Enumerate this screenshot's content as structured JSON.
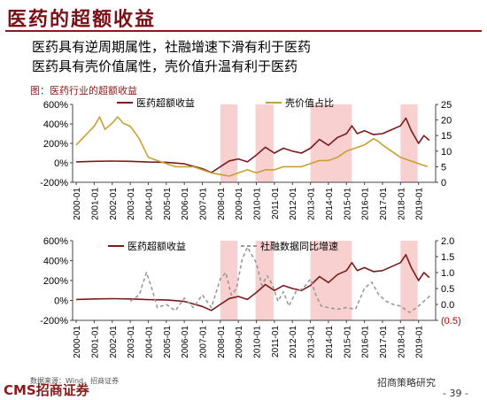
{
  "header": {
    "title": "医药的超额收益",
    "bullets": [
      "医药具有逆周期属性，社融增速下滑有利于医药",
      "医药具有壳价值属性，壳价值升温有利于医药"
    ],
    "caption": "图：医药行业的超额收益"
  },
  "footer": {
    "source": "数据来源：Wind，招商证券",
    "brand": "CMS招商证券",
    "wechat": "招商策略研究",
    "page": "- 39 -"
  },
  "colors": {
    "excess": "#7b1a1a",
    "shell": "#c8a032",
    "credit": "#9a9a9a",
    "shade": "#f7c8c8"
  },
  "chart_data": [
    {
      "type": "line",
      "shaded_periods": [
        [
          2008.0,
          2008.95
        ],
        [
          2009.95,
          2010.95
        ],
        [
          2013.0,
          2015.3
        ],
        [
          2018.0,
          2018.95
        ]
      ],
      "x_ticks": [
        "2000-01",
        "2001-01",
        "2002-01",
        "2003-01",
        "2004-01",
        "2005-01",
        "2006-01",
        "2007-01",
        "2008-01",
        "2009-01",
        "2010-01",
        "2011-01",
        "2012-01",
        "2013-01",
        "2014-01",
        "2015-01",
        "2016-01",
        "2017-01",
        "2018-01",
        "2019-01"
      ],
      "y_left_ticks": [
        "600%",
        "400%",
        "200%",
        "0%",
        "-200%"
      ],
      "y_left_range": [
        -200,
        600
      ],
      "y_right_ticks": [
        "25",
        "20",
        "15",
        "10",
        "5",
        "0"
      ],
      "y_right_range": [
        0,
        25
      ],
      "series": [
        {
          "name": "医药超额收益",
          "axis": "left",
          "points": [
            [
              2000.0,
              10
            ],
            [
              2001.0,
              15
            ],
            [
              2002.0,
              18
            ],
            [
              2003.0,
              15
            ],
            [
              2004.0,
              8
            ],
            [
              2005.0,
              5
            ],
            [
              2006.0,
              -10
            ],
            [
              2007.0,
              -60
            ],
            [
              2007.5,
              -100
            ],
            [
              2008.0,
              -40
            ],
            [
              2008.5,
              20
            ],
            [
              2009.0,
              40
            ],
            [
              2009.5,
              10
            ],
            [
              2010.0,
              80
            ],
            [
              2010.5,
              160
            ],
            [
              2011.0,
              100
            ],
            [
              2011.5,
              150
            ],
            [
              2012.0,
              120
            ],
            [
              2012.5,
              100
            ],
            [
              2013.0,
              150
            ],
            [
              2013.5,
              240
            ],
            [
              2014.0,
              180
            ],
            [
              2014.5,
              260
            ],
            [
              2015.0,
              300
            ],
            [
              2015.3,
              380
            ],
            [
              2015.6,
              300
            ],
            [
              2016.0,
              330
            ],
            [
              2016.5,
              290
            ],
            [
              2017.0,
              300
            ],
            [
              2017.5,
              340
            ],
            [
              2018.0,
              380
            ],
            [
              2018.3,
              460
            ],
            [
              2018.6,
              330
            ],
            [
              2019.0,
              200
            ],
            [
              2019.3,
              280
            ],
            [
              2019.6,
              230
            ]
          ]
        },
        {
          "name": "壳价值占比",
          "axis": "right",
          "points": [
            [
              2000.0,
              12
            ],
            [
              2000.5,
              15
            ],
            [
              2001.0,
              18
            ],
            [
              2001.3,
              21
            ],
            [
              2001.6,
              17
            ],
            [
              2002.0,
              19
            ],
            [
              2002.3,
              21
            ],
            [
              2002.6,
              19
            ],
            [
              2003.0,
              18
            ],
            [
              2003.5,
              14
            ],
            [
              2004.0,
              8
            ],
            [
              2004.5,
              7
            ],
            [
              2005.0,
              6
            ],
            [
              2005.5,
              5
            ],
            [
              2006.0,
              5
            ],
            [
              2006.5,
              5
            ],
            [
              2007.0,
              4
            ],
            [
              2007.5,
              3
            ],
            [
              2008.0,
              2.5
            ],
            [
              2008.5,
              2
            ],
            [
              2009.0,
              3
            ],
            [
              2009.5,
              4
            ],
            [
              2010.0,
              3
            ],
            [
              2010.5,
              4
            ],
            [
              2011.0,
              4
            ],
            [
              2011.5,
              5
            ],
            [
              2012.0,
              5
            ],
            [
              2012.5,
              5
            ],
            [
              2013.0,
              6
            ],
            [
              2013.5,
              7
            ],
            [
              2014.0,
              7
            ],
            [
              2014.5,
              8
            ],
            [
              2015.0,
              10
            ],
            [
              2015.5,
              11
            ],
            [
              2016.0,
              12
            ],
            [
              2016.5,
              14
            ],
            [
              2016.8,
              13
            ],
            [
              2017.0,
              12
            ],
            [
              2017.5,
              10
            ],
            [
              2018.0,
              8
            ],
            [
              2018.5,
              7
            ],
            [
              2019.0,
              6
            ],
            [
              2019.5,
              5
            ]
          ]
        }
      ]
    },
    {
      "type": "line",
      "shaded_periods": [
        [
          2008.0,
          2008.95
        ],
        [
          2009.95,
          2010.95
        ],
        [
          2013.0,
          2015.3
        ],
        [
          2018.0,
          2018.95
        ]
      ],
      "x_ticks": [
        "2000-01",
        "2001-01",
        "2002-01",
        "2003-01",
        "2004-01",
        "2005-01",
        "2006-01",
        "2007-01",
        "2008-01",
        "2009-01",
        "2010-01",
        "2011-01",
        "2012-01",
        "2013-01",
        "2014-01",
        "2015-01",
        "2016-01",
        "2017-01",
        "2018-01",
        "2019-01"
      ],
      "y_left_ticks": [
        "600%",
        "400%",
        "200%",
        "0%",
        "-200%"
      ],
      "y_left_range": [
        -200,
        600
      ],
      "y_right_ticks": [
        "2.0",
        "1.5",
        "1.0",
        "0.5",
        "0.0",
        "(0.5)"
      ],
      "y_right_range": [
        -0.5,
        2.0
      ],
      "series": [
        {
          "name": "医药超额收益",
          "axis": "left",
          "points": [
            [
              2000.0,
              10
            ],
            [
              2001.0,
              15
            ],
            [
              2002.0,
              18
            ],
            [
              2003.0,
              15
            ],
            [
              2004.0,
              8
            ],
            [
              2005.0,
              5
            ],
            [
              2006.0,
              -10
            ],
            [
              2007.0,
              -60
            ],
            [
              2007.5,
              -100
            ],
            [
              2008.0,
              -40
            ],
            [
              2008.5,
              20
            ],
            [
              2009.0,
              40
            ],
            [
              2009.5,
              10
            ],
            [
              2010.0,
              80
            ],
            [
              2010.5,
              160
            ],
            [
              2011.0,
              100
            ],
            [
              2011.5,
              150
            ],
            [
              2012.0,
              120
            ],
            [
              2012.5,
              100
            ],
            [
              2013.0,
              150
            ],
            [
              2013.5,
              240
            ],
            [
              2014.0,
              180
            ],
            [
              2014.5,
              260
            ],
            [
              2015.0,
              300
            ],
            [
              2015.3,
              380
            ],
            [
              2015.6,
              300
            ],
            [
              2016.0,
              330
            ],
            [
              2016.5,
              290
            ],
            [
              2017.0,
              300
            ],
            [
              2017.5,
              340
            ],
            [
              2018.0,
              380
            ],
            [
              2018.3,
              460
            ],
            [
              2018.6,
              330
            ],
            [
              2019.0,
              200
            ],
            [
              2019.3,
              280
            ],
            [
              2019.6,
              230
            ]
          ]
        },
        {
          "name": "社融数据同比增速",
          "axis": "right",
          "points": [
            [
              2003.0,
              0.1
            ],
            [
              2003.5,
              0.3
            ],
            [
              2003.9,
              1.0
            ],
            [
              2004.2,
              0.5
            ],
            [
              2004.5,
              -0.1
            ],
            [
              2005.0,
              0.0
            ],
            [
              2005.5,
              -0.2
            ],
            [
              2006.0,
              0.2
            ],
            [
              2006.5,
              -0.1
            ],
            [
              2007.0,
              0.3
            ],
            [
              2007.5,
              -0.1
            ],
            [
              2008.0,
              0.8
            ],
            [
              2008.3,
              1.0
            ],
            [
              2008.6,
              0.3
            ],
            [
              2008.9,
              0.5
            ],
            [
              2009.2,
              1.4
            ],
            [
              2009.5,
              1.8
            ],
            [
              2009.8,
              1.5
            ],
            [
              2010.0,
              1.3
            ],
            [
              2010.3,
              0.6
            ],
            [
              2010.6,
              0.9
            ],
            [
              2010.9,
              0.6
            ],
            [
              2011.2,
              0.1
            ],
            [
              2011.5,
              0.4
            ],
            [
              2011.8,
              -0.05
            ],
            [
              2012.2,
              0.4
            ],
            [
              2012.6,
              0.5
            ],
            [
              2013.0,
              0.8
            ],
            [
              2013.3,
              0.3
            ],
            [
              2013.6,
              -0.05
            ],
            [
              2014.0,
              -0.1
            ],
            [
              2014.5,
              -0.15
            ],
            [
              2015.0,
              -0.1
            ],
            [
              2015.5,
              -0.15
            ],
            [
              2016.0,
              0.5
            ],
            [
              2016.4,
              0.7
            ],
            [
              2016.8,
              0.3
            ],
            [
              2017.2,
              0.1
            ],
            [
              2017.6,
              0.0
            ],
            [
              2018.0,
              -0.05
            ],
            [
              2018.5,
              -0.25
            ],
            [
              2018.9,
              -0.1
            ],
            [
              2019.3,
              0.1
            ],
            [
              2019.7,
              0.3
            ]
          ]
        }
      ]
    }
  ]
}
